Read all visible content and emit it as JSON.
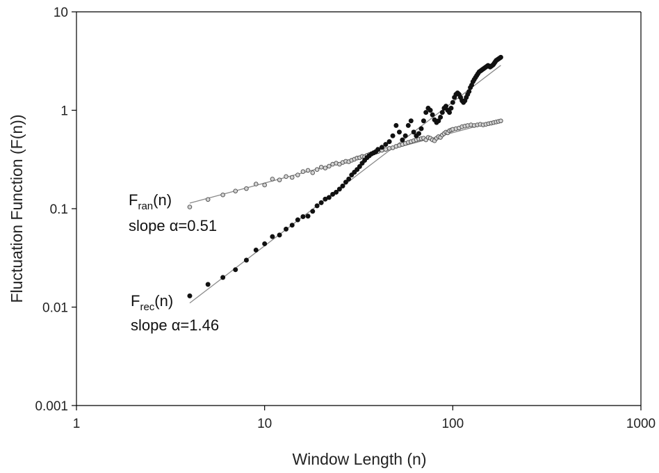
{
  "chart_data": {
    "type": "scatter",
    "xlabel": "Window Length (n)",
    "ylabel": "Fluctuation Function (F(n))",
    "xscale": "log",
    "yscale": "log",
    "xlim": [
      1,
      1000
    ],
    "ylim": [
      0.001,
      10
    ],
    "xticks": [
      "1",
      "10",
      "100",
      "1000"
    ],
    "yticks": [
      "0.001",
      "0.01",
      "0.1",
      "1",
      "10"
    ],
    "grid": false,
    "series": [
      {
        "name": "Fran(n)",
        "marker": "open-circle",
        "color": "#d4d4d4",
        "fit_slope": 0.51,
        "x": [
          4,
          5,
          6,
          7,
          8,
          9,
          10,
          11,
          12,
          13,
          14,
          15,
          16,
          17,
          18,
          19,
          20,
          21,
          22,
          23,
          24,
          25,
          26,
          27,
          28,
          29,
          30,
          31,
          32,
          33,
          34,
          35,
          36,
          37,
          38,
          39,
          40,
          42,
          44,
          46,
          48,
          50,
          52,
          54,
          56,
          58,
          60,
          62,
          64,
          66,
          68,
          70,
          72,
          74,
          76,
          78,
          80,
          82,
          84,
          86,
          88,
          90,
          92,
          94,
          96,
          98,
          100,
          104,
          108,
          112,
          116,
          120,
          125,
          130,
          135,
          140,
          145,
          150,
          155,
          160,
          165,
          170,
          175,
          180
        ],
        "y": [
          0.104,
          0.124,
          0.138,
          0.151,
          0.16,
          0.178,
          0.174,
          0.2,
          0.196,
          0.212,
          0.208,
          0.22,
          0.238,
          0.245,
          0.232,
          0.25,
          0.264,
          0.259,
          0.27,
          0.283,
          0.29,
          0.283,
          0.295,
          0.303,
          0.3,
          0.31,
          0.318,
          0.327,
          0.33,
          0.34,
          0.337,
          0.348,
          0.355,
          0.362,
          0.368,
          0.375,
          0.38,
          0.392,
          0.4,
          0.41,
          0.416,
          0.43,
          0.44,
          0.45,
          0.46,
          0.472,
          0.48,
          0.49,
          0.5,
          0.51,
          0.515,
          0.52,
          0.5,
          0.53,
          0.52,
          0.5,
          0.49,
          0.52,
          0.54,
          0.53,
          0.56,
          0.58,
          0.6,
          0.59,
          0.62,
          0.63,
          0.64,
          0.65,
          0.66,
          0.68,
          0.69,
          0.7,
          0.71,
          0.7,
          0.71,
          0.72,
          0.71,
          0.72,
          0.73,
          0.74,
          0.75,
          0.76,
          0.77,
          0.78
        ]
      },
      {
        "name": "Frec(n)",
        "marker": "filled-circle",
        "color": "#111111",
        "fit_slope": 1.46,
        "x": [
          4,
          5,
          6,
          7,
          8,
          9,
          10,
          11,
          12,
          13,
          14,
          15,
          16,
          17,
          18,
          19,
          20,
          21,
          22,
          23,
          24,
          25,
          26,
          27,
          28,
          29,
          30,
          31,
          32,
          33,
          34,
          35,
          36,
          37,
          38,
          39,
          40,
          42,
          44,
          46,
          48,
          50,
          52,
          54,
          56,
          58,
          60,
          62,
          64,
          66,
          68,
          70,
          72,
          74,
          76,
          78,
          80,
          82,
          84,
          86,
          88,
          90,
          92,
          94,
          96,
          98,
          100,
          102,
          104,
          106,
          108,
          110,
          112,
          114,
          116,
          118,
          120,
          122,
          124,
          126,
          128,
          130,
          132,
          134,
          136,
          138,
          140,
          142,
          144,
          146,
          148,
          150,
          152,
          154,
          156,
          158,
          160,
          162,
          164,
          166,
          168,
          170,
          172,
          174,
          176,
          178,
          180
        ],
        "y": [
          0.013,
          0.017,
          0.02,
          0.024,
          0.03,
          0.038,
          0.044,
          0.052,
          0.054,
          0.062,
          0.068,
          0.077,
          0.083,
          0.084,
          0.094,
          0.107,
          0.115,
          0.125,
          0.13,
          0.14,
          0.147,
          0.158,
          0.17,
          0.186,
          0.2,
          0.22,
          0.235,
          0.25,
          0.268,
          0.29,
          0.31,
          0.33,
          0.345,
          0.36,
          0.37,
          0.38,
          0.4,
          0.42,
          0.45,
          0.48,
          0.55,
          0.7,
          0.6,
          0.5,
          0.55,
          0.7,
          0.78,
          0.6,
          0.55,
          0.58,
          0.65,
          0.78,
          0.95,
          1.05,
          1.0,
          0.9,
          0.8,
          0.75,
          0.78,
          0.85,
          0.95,
          1.05,
          1.1,
          1.0,
          0.95,
          1.05,
          1.2,
          1.35,
          1.45,
          1.5,
          1.45,
          1.35,
          1.25,
          1.2,
          1.25,
          1.35,
          1.45,
          1.55,
          1.7,
          1.8,
          1.95,
          2.05,
          2.15,
          2.25,
          2.35,
          2.45,
          2.5,
          2.55,
          2.6,
          2.65,
          2.7,
          2.75,
          2.8,
          2.85,
          2.8,
          2.75,
          2.8,
          2.85,
          2.9,
          3.0,
          3.1,
          3.2,
          3.25,
          3.3,
          3.35,
          3.4,
          3.45
        ]
      }
    ],
    "fit_lines": [
      {
        "series": "Fran(n)",
        "x": [
          4,
          180
        ],
        "y": [
          0.114,
          0.8
        ]
      },
      {
        "series": "Frec(n)",
        "x": [
          4,
          180
        ],
        "y": [
          0.011,
          2.86
        ]
      }
    ],
    "annotations": {
      "ran": {
        "main": "F",
        "sub": "ran",
        "suffix": "(n)",
        "slope_text": "slope α=0.51"
      },
      "rec": {
        "main": "F",
        "sub": "rec",
        "suffix": "(n)",
        "slope_text": "slope α=1.46"
      }
    }
  }
}
